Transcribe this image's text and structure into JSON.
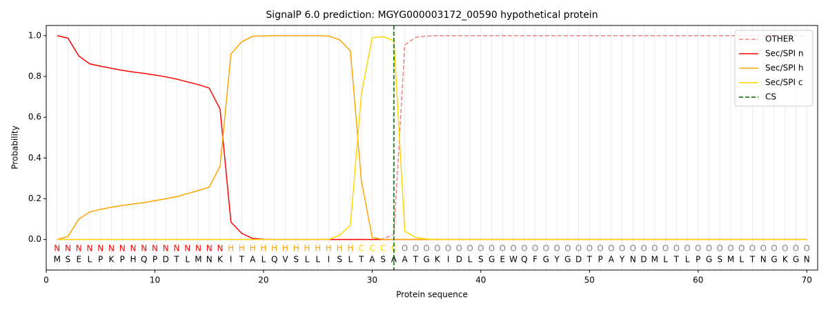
{
  "chart_data": {
    "type": "line",
    "title": "SignalP 6.0 prediction: MGYG000003172_00590 hypothetical protein",
    "x_label": "Protein sequence",
    "y_label": "Probability",
    "xlim": [
      0,
      71
    ],
    "ylim": [
      -0.15,
      1.05
    ],
    "xticks": [
      0,
      10,
      20,
      30,
      40,
      50,
      60,
      70
    ],
    "yticks": [
      {
        "value": 0,
        "label": "0.0"
      },
      {
        "value": 0.2,
        "label": "0.2"
      },
      {
        "value": 0.4,
        "label": "0.4"
      },
      {
        "value": 0.6,
        "label": "0.6"
      },
      {
        "value": 0.8,
        "label": "0.8"
      },
      {
        "value": 1,
        "label": "1.0"
      }
    ],
    "grid": true,
    "legend": "upper right",
    "x": [
      1,
      2,
      3,
      4,
      5,
      6,
      7,
      8,
      9,
      10,
      11,
      12,
      13,
      14,
      15,
      16,
      17,
      18,
      19,
      20,
      21,
      22,
      23,
      24,
      25,
      26,
      27,
      28,
      29,
      30,
      31,
      32,
      33,
      34,
      35,
      36,
      37,
      38,
      39,
      40,
      41,
      42,
      43,
      44,
      45,
      46,
      47,
      48,
      49,
      50,
      51,
      52,
      53,
      54,
      55,
      56,
      57,
      58,
      59,
      60,
      61,
      62,
      63,
      64,
      65,
      66,
      67,
      68,
      69,
      70
    ],
    "sequence": [
      "M",
      "S",
      "E",
      "L",
      "P",
      "K",
      "P",
      "H",
      "Q",
      "P",
      "D",
      "T",
      "L",
      "M",
      "N",
      "K",
      "I",
      "T",
      "A",
      "L",
      "Q",
      "V",
      "S",
      "L",
      "L",
      "I",
      "S",
      "L",
      "T",
      "A",
      "S",
      "A",
      "A",
      "T",
      "G",
      "K",
      "I",
      "D",
      "L",
      "S",
      "G",
      "E",
      "W",
      "Q",
      "F",
      "G",
      "Y",
      "G",
      "D",
      "T",
      "P",
      "A",
      "Y",
      "N",
      "D",
      "M",
      "L",
      "T",
      "L",
      "P",
      "G",
      "S",
      "M",
      "L",
      "T",
      "N",
      "G",
      "K",
      "G",
      "N"
    ],
    "regions": [
      "N",
      "N",
      "N",
      "N",
      "N",
      "N",
      "N",
      "N",
      "N",
      "N",
      "N",
      "N",
      "N",
      "N",
      "N",
      "N",
      "H",
      "H",
      "H",
      "H",
      "H",
      "H",
      "H",
      "H",
      "H",
      "H",
      "H",
      "H",
      "C",
      "C",
      "C",
      "C",
      "O",
      "O",
      "O",
      "O",
      "O",
      "O",
      "O",
      "O",
      "O",
      "O",
      "O",
      "O",
      "O",
      "O",
      "O",
      "O",
      "O",
      "O",
      "O",
      "O",
      "O",
      "O",
      "O",
      "O",
      "O",
      "O",
      "O",
      "O",
      "O",
      "O",
      "O",
      "O",
      "O",
      "O",
      "O",
      "O",
      "O",
      "O"
    ],
    "region_colors": {
      "N": "#ff0000",
      "H": "#ffa500",
      "C": "#ffd700",
      "O": "#808080"
    },
    "series": [
      {
        "name": "OTHER",
        "color": "#f08080",
        "dash": true,
        "values": [
          0,
          0,
          0,
          0,
          0,
          0,
          0,
          0,
          0,
          0,
          0,
          0,
          0,
          0,
          0,
          0,
          0,
          0,
          0,
          0,
          0,
          0,
          0,
          0,
          0,
          0,
          0,
          0,
          0,
          0,
          0.003,
          0.025,
          0.955,
          0.992,
          0.998,
          1,
          1,
          1,
          1,
          1,
          1,
          1,
          1,
          1,
          1,
          1,
          1,
          1,
          1,
          1,
          1,
          1,
          1,
          1,
          1,
          1,
          1,
          1,
          1,
          1,
          1,
          1,
          1,
          1,
          1,
          1,
          1,
          1,
          1,
          1
        ]
      },
      {
        "name": "Sec/SPI n",
        "color": "#ff0000",
        "values": [
          1.0,
          0.988,
          0.9,
          0.862,
          0.85,
          0.84,
          0.83,
          0.822,
          0.815,
          0.807,
          0.798,
          0.787,
          0.773,
          0.76,
          0.743,
          0.64,
          0.085,
          0.03,
          0.005,
          0.001,
          0,
          0,
          0,
          0,
          0,
          0,
          0,
          0,
          0,
          0,
          0,
          0,
          0,
          0,
          0,
          0,
          0,
          0,
          0,
          0,
          0,
          0,
          0,
          0,
          0,
          0,
          0,
          0,
          0,
          0,
          0,
          0,
          0,
          0,
          0,
          0,
          0,
          0,
          0,
          0,
          0,
          0,
          0,
          0,
          0,
          0,
          0,
          0,
          0,
          0
        ]
      },
      {
        "name": "Sec/SPI h",
        "color": "#ffa500",
        "values": [
          0,
          0.015,
          0.1,
          0.135,
          0.148,
          0.158,
          0.167,
          0.174,
          0.181,
          0.19,
          0.2,
          0.21,
          0.225,
          0.24,
          0.257,
          0.36,
          0.91,
          0.97,
          0.997,
          0.999,
          1,
          1,
          1,
          1,
          1,
          0.998,
          0.98,
          0.925,
          0.29,
          0.01,
          0,
          0,
          0,
          0,
          0,
          0,
          0,
          0,
          0,
          0,
          0,
          0,
          0,
          0,
          0,
          0,
          0,
          0,
          0,
          0,
          0,
          0,
          0,
          0,
          0,
          0,
          0,
          0,
          0,
          0,
          0,
          0,
          0,
          0,
          0,
          0,
          0,
          0,
          0,
          0
        ]
      },
      {
        "name": "Sec/SPI c",
        "color": "#ffd700",
        "values": [
          0,
          0,
          0,
          0,
          0,
          0,
          0,
          0,
          0,
          0,
          0,
          0,
          0,
          0,
          0,
          0,
          0,
          0,
          0,
          0,
          0,
          0,
          0,
          0,
          0,
          0,
          0.02,
          0.07,
          0.71,
          0.99,
          0.995,
          0.975,
          0.04,
          0.01,
          0.002,
          0,
          0,
          0,
          0,
          0,
          0,
          0,
          0,
          0,
          0,
          0,
          0,
          0,
          0,
          0,
          0,
          0,
          0,
          0,
          0,
          0,
          0,
          0,
          0,
          0,
          0,
          0,
          0,
          0,
          0,
          0,
          0,
          0,
          0,
          0
        ]
      }
    ],
    "cs": {
      "name": "CS",
      "x": 32,
      "color": "#006400"
    }
  }
}
